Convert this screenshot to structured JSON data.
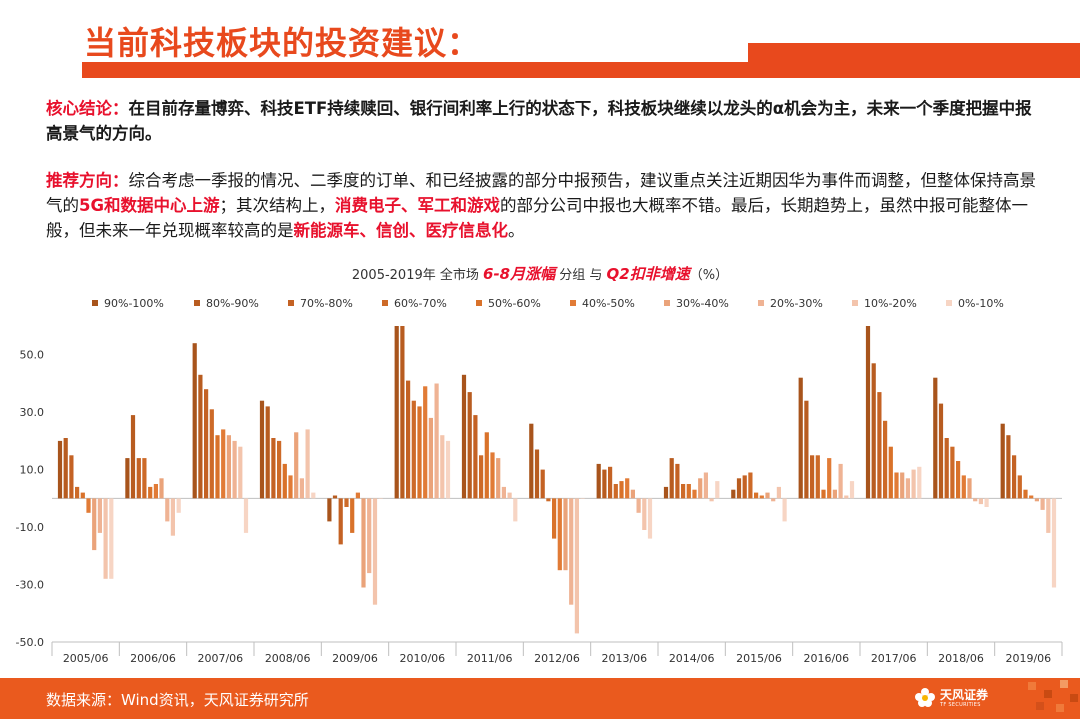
{
  "page": {
    "title": "当前科技板块的投资建议：",
    "core_label": "核心结论：",
    "core_text": "在目前存量博弈、科技ETF持续赎回、银行间利率上行的状态下，科技板块继续以龙头的α机会为主，未来一个季度把握中报高景气的方向。",
    "rec_label": "推荐方向：",
    "rec_text_1": "综合考虑一季报的情况、二季度的订单、和已经披露的部分中报预告，建议重点关注近期因华为事件而调整，但整体保持高景气的",
    "rec_hl_1": "5G和数据中心上游",
    "rec_text_2": "；其次结构上，",
    "rec_hl_2": "消费电子、军工和游戏",
    "rec_text_3": "的部分公司中报也大概率不错。最后，长期趋势上，虽然中报可能整体一般，但未来一年兑现概率较高的是",
    "rec_hl_3": "新能源车、信创、医疗信息化",
    "rec_text_4": "。"
  },
  "footer": {
    "source": "数据来源：Wind资讯，天风证券研究所",
    "logo_name": "天风证券",
    "logo_sub": "TF SECURITIES"
  },
  "colors": {
    "accent": "#e8491d",
    "highlight": "#e8112d",
    "footer_bg": "#ea5a1e"
  },
  "chart_data": {
    "type": "bar",
    "title_parts": [
      "2005-2019年 全市场 ",
      "6-8月涨幅",
      " 分组  与  ",
      "Q2扣非增速",
      "（%）"
    ],
    "categories": [
      "2005/06",
      "2006/06",
      "2007/06",
      "2008/06",
      "2009/06",
      "2010/06",
      "2011/06",
      "2012/06",
      "2013/06",
      "2014/06",
      "2015/06",
      "2016/06",
      "2017/06",
      "2018/06",
      "2019/06"
    ],
    "series": [
      {
        "name": "90%-100%",
        "color": "#a8541c",
        "values": [
          20,
          14,
          54,
          34,
          -8,
          60,
          43,
          26,
          12,
          4,
          3,
          42,
          60,
          42,
          26
        ]
      },
      {
        "name": "80%-90%",
        "color": "#b85c20",
        "values": [
          21,
          29,
          43,
          32,
          1,
          60,
          37,
          17,
          10,
          14,
          7,
          34,
          47,
          33,
          22
        ]
      },
      {
        "name": "70%-80%",
        "color": "#c46224",
        "values": [
          15,
          14,
          38,
          21,
          -16,
          41,
          29,
          10,
          11,
          12,
          8,
          15,
          37,
          21,
          15
        ]
      },
      {
        "name": "60%-70%",
        "color": "#cd6a28",
        "values": [
          4,
          14,
          31,
          20,
          -3,
          34,
          15,
          -1,
          5,
          5,
          9,
          15,
          27,
          18,
          8
        ]
      },
      {
        "name": "50%-60%",
        "color": "#d9722a",
        "values": [
          2,
          4,
          22,
          12,
          -12,
          32,
          23,
          -14,
          6,
          5,
          2,
          3,
          18,
          13,
          3
        ]
      },
      {
        "name": "40%-50%",
        "color": "#e17b36",
        "values": [
          -5,
          5,
          24,
          8,
          2,
          39,
          16,
          -25,
          7,
          3,
          1,
          14,
          9,
          8,
          1
        ]
      },
      {
        "name": "30%-40%",
        "color": "#eaa37a",
        "values": [
          -18,
          7,
          22,
          23,
          -31,
          28,
          14,
          -25,
          3,
          7,
          2,
          3,
          9,
          7,
          -1
        ]
      },
      {
        "name": "20%-30%",
        "color": "#efb394",
        "values": [
          -12,
          -8,
          20,
          7,
          -26,
          40,
          4,
          -37,
          -5,
          9,
          -1,
          12,
          7,
          -1,
          -4
        ]
      },
      {
        "name": "10%-20%",
        "color": "#f3c4ac",
        "values": [
          -28,
          -13,
          18,
          24,
          -37,
          22,
          2,
          -47,
          -11,
          -1,
          4,
          1,
          10,
          -2,
          -12
        ]
      },
      {
        "name": "0%-10%",
        "color": "#f7d5c4",
        "values": [
          -28,
          -5,
          -12,
          2,
          0,
          20,
          -8,
          0,
          -14,
          6,
          -8,
          6,
          11,
          -3,
          -31
        ]
      }
    ],
    "yticks": [
      "50.0",
      "30.0",
      "10.0",
      "-10.0",
      "-30.0",
      "-50.0"
    ],
    "ytick_values": [
      50,
      30,
      10,
      -10,
      -30,
      -50
    ],
    "ylim": [
      -50,
      60
    ],
    "legend": "top",
    "grid": false
  }
}
